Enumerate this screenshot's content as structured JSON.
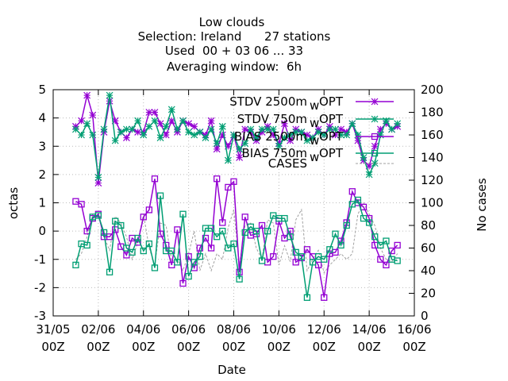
{
  "chart_data": {
    "type": "line",
    "title_lines": [
      "Low clouds",
      "Selection: Ireland      27 stations",
      "Used  00 + 03 06 ... 33",
      "Averaging window:  6h"
    ],
    "xlabel": "Date",
    "ylabel": "octas",
    "y2label": "No cases",
    "x_ticks": [
      {
        "top": "31/05",
        "bottom": "00Z",
        "day": 0
      },
      {
        "top": "02/06",
        "bottom": "00Z",
        "day": 2
      },
      {
        "top": "04/06",
        "bottom": "00Z",
        "day": 4
      },
      {
        "top": "06/06",
        "bottom": "00Z",
        "day": 6
      },
      {
        "top": "08/06",
        "bottom": "00Z",
        "day": 8
      },
      {
        "top": "10/06",
        "bottom": "00Z",
        "day": 10
      },
      {
        "top": "12/06",
        "bottom": "00Z",
        "day": 12
      },
      {
        "top": "14/06",
        "bottom": "00Z",
        "day": 14
      },
      {
        "top": "16/06",
        "bottom": "00Z",
        "day": 16
      }
    ],
    "xlim": [
      0,
      16
    ],
    "ylim": [
      -3,
      5
    ],
    "y_ticks": [
      -3,
      -2,
      -1,
      0,
      1,
      2,
      3,
      4,
      5
    ],
    "y2lim": [
      0,
      200
    ],
    "y2_ticks": [
      0,
      20,
      40,
      60,
      80,
      100,
      120,
      140,
      160,
      180,
      200
    ],
    "grid": true,
    "legend_position": "top-right",
    "series": [
      {
        "name": "STDV 2500m",
        "name_tail": "OPT",
        "name_sub": "w",
        "color": "#9400d3",
        "marker": "star",
        "axis": "y",
        "x": [
          1.0,
          1.25,
          1.5,
          1.75,
          2.0,
          2.25,
          2.5,
          2.75,
          3.0,
          3.25,
          3.5,
          3.75,
          4.0,
          4.25,
          4.5,
          4.75,
          5.0,
          5.25,
          5.5,
          5.75,
          6.0,
          6.25,
          6.5,
          6.75,
          7.0,
          7.25,
          7.5,
          7.75,
          8.0,
          8.25,
          8.5,
          8.75,
          9.0,
          9.25,
          9.5,
          9.75,
          10.0,
          10.25,
          10.5,
          10.75,
          11.0,
          11.25,
          11.5,
          11.75,
          12.0,
          12.25,
          12.5,
          12.75,
          13.0,
          13.25,
          13.5,
          13.75,
          14.0,
          14.25,
          14.5,
          14.75,
          15.0,
          15.25
        ],
        "values": [
          3.7,
          3.9,
          4.8,
          4.1,
          1.7,
          3.5,
          4.6,
          3.9,
          3.5,
          3.3,
          3.6,
          3.5,
          3.5,
          4.2,
          4.2,
          3.8,
          3.4,
          3.9,
          3.5,
          3.9,
          3.8,
          3.7,
          3.5,
          3.4,
          3.9,
          2.9,
          3.4,
          3.0,
          3.4,
          2.6,
          3.6,
          3.5,
          3.2,
          3.5,
          3.7,
          3.4,
          3.1,
          3.8,
          3.2,
          3.6,
          3.5,
          3.4,
          3.3,
          3.6,
          3.4,
          3.7,
          3.4,
          3.6,
          3.5,
          3.8,
          3.2,
          2.5,
          2.3,
          3.0,
          3.6,
          3.8,
          3.6,
          3.7
        ]
      },
      {
        "name": "STDV 750m",
        "name_tail": "OPT",
        "name_sub": "w",
        "color": "#009e73",
        "marker": "star",
        "axis": "y",
        "x": [
          1.0,
          1.25,
          1.5,
          1.75,
          2.0,
          2.25,
          2.5,
          2.75,
          3.0,
          3.25,
          3.5,
          3.75,
          4.0,
          4.25,
          4.5,
          4.75,
          5.0,
          5.25,
          5.5,
          5.75,
          6.0,
          6.25,
          6.5,
          6.75,
          7.0,
          7.25,
          7.5,
          7.75,
          8.0,
          8.25,
          8.5,
          8.75,
          9.0,
          9.25,
          9.5,
          9.75,
          10.0,
          10.25,
          10.5,
          10.75,
          11.0,
          11.25,
          11.5,
          11.75,
          12.0,
          12.25,
          12.5,
          12.75,
          13.0,
          13.25,
          13.5,
          13.75,
          14.0,
          14.25,
          14.5,
          14.75,
          15.0,
          15.25
        ],
        "values": [
          3.6,
          3.4,
          3.8,
          3.4,
          1.9,
          3.6,
          4.8,
          3.2,
          3.5,
          3.6,
          3.6,
          3.9,
          3.4,
          3.7,
          3.9,
          3.3,
          3.7,
          4.3,
          3.6,
          3.9,
          3.5,
          3.4,
          3.5,
          3.3,
          3.6,
          3.1,
          3.7,
          2.5,
          3.4,
          2.9,
          3.1,
          3.6,
          3.3,
          3.6,
          3.6,
          3.6,
          3.0,
          3.3,
          3.4,
          3.5,
          3.5,
          3.2,
          3.3,
          3.5,
          3.4,
          3.6,
          3.6,
          3.4,
          3.4,
          3.8,
          3.4,
          2.6,
          2.0,
          2.4,
          3.4,
          3.9,
          3.6,
          3.8
        ]
      },
      {
        "name": "BIAS 2500m",
        "name_tail": "OPT",
        "name_sub": "w",
        "color": "#9400d3",
        "marker": "square",
        "axis": "y",
        "x": [
          1.0,
          1.25,
          1.5,
          1.75,
          2.0,
          2.25,
          2.5,
          2.75,
          3.0,
          3.25,
          3.5,
          3.75,
          4.0,
          4.25,
          4.5,
          4.75,
          5.0,
          5.25,
          5.5,
          5.75,
          6.0,
          6.25,
          6.5,
          6.75,
          7.0,
          7.25,
          7.5,
          7.75,
          8.0,
          8.25,
          8.5,
          8.75,
          9.0,
          9.25,
          9.5,
          9.75,
          10.0,
          10.25,
          10.5,
          10.75,
          11.0,
          11.25,
          11.5,
          11.75,
          12.0,
          12.25,
          12.5,
          12.75,
          13.0,
          13.25,
          13.5,
          13.75,
          14.0,
          14.25,
          14.5,
          14.75,
          15.0,
          15.25
        ],
        "values": [
          1.05,
          0.95,
          0.0,
          0.45,
          0.6,
          -0.2,
          -0.2,
          0.05,
          -0.55,
          -0.85,
          -0.25,
          -0.4,
          0.5,
          0.75,
          1.85,
          -0.1,
          -0.5,
          -1.2,
          0.05,
          -1.85,
          -0.9,
          -1.3,
          -0.6,
          -0.25,
          -0.6,
          1.85,
          0.3,
          1.55,
          1.75,
          -1.45,
          0.5,
          -0.15,
          -0.1,
          0.2,
          -1.1,
          -0.9,
          0.35,
          -0.25,
          0.0,
          -1.1,
          -0.95,
          -0.65,
          -0.9,
          -1.2,
          -2.35,
          -0.8,
          -0.75,
          -0.35,
          0.3,
          1.4,
          1.0,
          0.85,
          0.45,
          -0.5,
          -1.0,
          -1.2,
          -0.7,
          -0.5
        ]
      },
      {
        "name": "BIAS 750m",
        "name_tail": "OPT",
        "name_sub": "w",
        "color": "#009e73",
        "marker": "square",
        "axis": "y",
        "x": [
          1.0,
          1.25,
          1.5,
          1.75,
          2.0,
          2.25,
          2.5,
          2.75,
          3.0,
          3.25,
          3.5,
          3.75,
          4.0,
          4.25,
          4.5,
          4.75,
          5.0,
          5.25,
          5.5,
          5.75,
          6.0,
          6.25,
          6.5,
          6.75,
          7.0,
          7.25,
          7.5,
          7.75,
          8.0,
          8.25,
          8.5,
          8.75,
          9.0,
          9.25,
          9.5,
          9.75,
          10.0,
          10.25,
          10.5,
          10.75,
          11.0,
          11.25,
          11.5,
          11.75,
          12.0,
          12.25,
          12.5,
          12.75,
          13.0,
          13.25,
          13.5,
          13.75,
          14.0,
          14.25,
          14.5,
          14.75,
          15.0,
          15.25
        ],
        "values": [
          -1.2,
          -0.45,
          -0.5,
          0.5,
          0.55,
          -0.05,
          -1.45,
          0.35,
          0.2,
          -0.6,
          -0.75,
          -0.25,
          -0.7,
          -0.45,
          -1.3,
          1.25,
          -0.7,
          -0.7,
          -1.1,
          0.6,
          -1.6,
          -1.1,
          -0.9,
          0.1,
          0.1,
          -0.2,
          0.0,
          -0.6,
          -0.45,
          -1.7,
          -0.05,
          0.15,
          0.0,
          -1.05,
          0.0,
          0.55,
          0.45,
          0.45,
          -0.2,
          -0.75,
          -0.9,
          -2.35,
          -1.1,
          -0.9,
          -1.0,
          -0.65,
          -0.1,
          -0.5,
          0.2,
          0.95,
          1.1,
          0.45,
          0.3,
          -0.2,
          -0.5,
          -0.35,
          -1.0,
          -1.05
        ]
      },
      {
        "name": "CASES",
        "color": "#a0a0a0",
        "marker": "none",
        "dashed": true,
        "axis": "y2",
        "x": [
          1.0,
          1.25,
          1.5,
          1.75,
          2.0,
          2.25,
          2.5,
          2.75,
          3.0,
          3.25,
          3.5,
          3.75,
          4.0,
          4.25,
          4.5,
          4.75,
          5.0,
          5.25,
          5.5,
          5.75,
          6.0,
          6.25,
          6.5,
          6.75,
          7.0,
          7.25,
          7.5,
          7.75,
          8.0,
          8.25,
          8.5,
          8.75,
          9.0,
          9.25,
          9.5,
          9.75,
          10.0,
          10.25,
          10.5,
          10.75,
          11.0,
          11.25,
          11.5,
          11.75,
          12.0,
          12.25,
          12.5,
          12.75,
          13.0,
          13.25,
          13.5,
          13.75,
          14.0,
          14.25,
          14.5,
          14.75,
          15.0,
          15.25
        ],
        "values": [
          50,
          55,
          70,
          90,
          92,
          70,
          58,
          88,
          82,
          70,
          50,
          65,
          90,
          60,
          45,
          82,
          80,
          48,
          50,
          40,
          55,
          75,
          40,
          55,
          40,
          55,
          50,
          78,
          94,
          45,
          80,
          82,
          60,
          50,
          85,
          82,
          45,
          62,
          48,
          85,
          94,
          40,
          50,
          58,
          38,
          45,
          50,
          55,
          50,
          55,
          90,
          100,
          90,
          80,
          60,
          50,
          48,
          55
        ]
      }
    ]
  }
}
